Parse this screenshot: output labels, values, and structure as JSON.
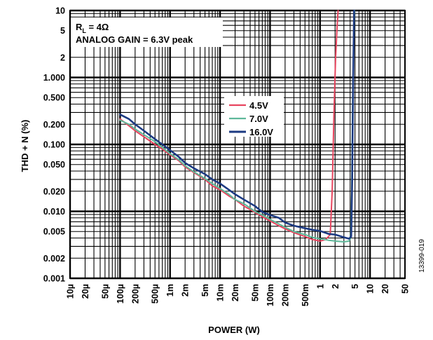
{
  "chart_data": {
    "type": "line",
    "xlabel": "POWER (W)",
    "ylabel": "THD + N (%)",
    "xscale": "log",
    "yscale": "log",
    "xlim": [
      1e-05,
      50
    ],
    "ylim": [
      0.001,
      10
    ],
    "grid": true,
    "legend_placement": "center",
    "figure_id": "13399-019",
    "x_tick_labels": [
      {
        "v": 1e-05,
        "t": "10µ"
      },
      {
        "v": 2e-05,
        "t": "20µ"
      },
      {
        "v": 5e-05,
        "t": "50µ"
      },
      {
        "v": 0.0001,
        "t": "100µ"
      },
      {
        "v": 0.0002,
        "t": "200µ"
      },
      {
        "v": 0.0005,
        "t": "500µ"
      },
      {
        "v": 0.001,
        "t": "1m"
      },
      {
        "v": 0.002,
        "t": "2m"
      },
      {
        "v": 0.005,
        "t": "5m"
      },
      {
        "v": 0.01,
        "t": "10m"
      },
      {
        "v": 0.02,
        "t": "20m"
      },
      {
        "v": 0.05,
        "t": "50m"
      },
      {
        "v": 0.1,
        "t": "100m"
      },
      {
        "v": 0.2,
        "t": "200m"
      },
      {
        "v": 0.5,
        "t": "500m"
      },
      {
        "v": 1,
        "t": "1"
      },
      {
        "v": 2,
        "t": "2"
      },
      {
        "v": 5,
        "t": "5"
      },
      {
        "v": 10,
        "t": "10"
      },
      {
        "v": 20,
        "t": "20"
      },
      {
        "v": 50,
        "t": "50"
      }
    ],
    "y_tick_labels": [
      {
        "v": 10,
        "t": "10"
      },
      {
        "v": 5,
        "t": "5"
      },
      {
        "v": 2,
        "t": "2"
      },
      {
        "v": 1,
        "t": "1.000"
      },
      {
        "v": 0.5,
        "t": "0.500"
      },
      {
        "v": 0.2,
        "t": "0.200"
      },
      {
        "v": 0.1,
        "t": "0.100"
      },
      {
        "v": 0.05,
        "t": "0.050"
      },
      {
        "v": 0.02,
        "t": "0.020"
      },
      {
        "v": 0.01,
        "t": "0.010"
      },
      {
        "v": 0.005,
        "t": "0.005"
      },
      {
        "v": 0.002,
        "t": "0.002"
      },
      {
        "v": 0.001,
        "t": "0.001"
      }
    ],
    "annotation": {
      "line1_main": "R",
      "line1_sub": "L",
      "line1_rest": " = 4Ω",
      "line2": "ANALOG GAIN = 6.3V peak"
    },
    "series": [
      {
        "name": "4.5V",
        "color": "#e8455f",
        "points": [
          [
            0.0001,
            0.24
          ],
          [
            0.00015,
            0.19
          ],
          [
            0.0002,
            0.16
          ],
          [
            0.0003,
            0.13
          ],
          [
            0.0005,
            0.1
          ],
          [
            0.0007,
            0.085
          ],
          [
            0.001,
            0.07
          ],
          [
            0.0015,
            0.057
          ],
          [
            0.002,
            0.046
          ],
          [
            0.003,
            0.038
          ],
          [
            0.005,
            0.03
          ],
          [
            0.007,
            0.024
          ],
          [
            0.01,
            0.021
          ],
          [
            0.015,
            0.017
          ],
          [
            0.02,
            0.015
          ],
          [
            0.03,
            0.012
          ],
          [
            0.05,
            0.0097
          ],
          [
            0.07,
            0.0083
          ],
          [
            0.1,
            0.0072
          ],
          [
            0.15,
            0.0061
          ],
          [
            0.2,
            0.0055
          ],
          [
            0.3,
            0.0048
          ],
          [
            0.5,
            0.0042
          ],
          [
            0.7,
            0.0038
          ],
          [
            1.0,
            0.0036
          ],
          [
            1.3,
            0.0038
          ],
          [
            1.6,
            0.0045
          ],
          [
            1.75,
            0.02
          ],
          [
            1.9,
            0.3
          ],
          [
            2.05,
            2.0
          ],
          [
            2.2,
            6.0
          ],
          [
            2.3,
            10
          ]
        ]
      },
      {
        "name": "7.0V",
        "color": "#5fb89a",
        "points": [
          [
            0.0001,
            0.23
          ],
          [
            0.00015,
            0.2
          ],
          [
            0.0002,
            0.17
          ],
          [
            0.0003,
            0.14
          ],
          [
            0.0005,
            0.11
          ],
          [
            0.0007,
            0.09
          ],
          [
            0.001,
            0.073
          ],
          [
            0.0015,
            0.059
          ],
          [
            0.002,
            0.048
          ],
          [
            0.003,
            0.039
          ],
          [
            0.005,
            0.031
          ],
          [
            0.007,
            0.026
          ],
          [
            0.01,
            0.022
          ],
          [
            0.015,
            0.018
          ],
          [
            0.02,
            0.015
          ],
          [
            0.03,
            0.013
          ],
          [
            0.05,
            0.01
          ],
          [
            0.07,
            0.0088
          ],
          [
            0.1,
            0.0076
          ],
          [
            0.15,
            0.0065
          ],
          [
            0.2,
            0.0058
          ],
          [
            0.3,
            0.005
          ],
          [
            0.5,
            0.0045
          ],
          [
            0.7,
            0.0041
          ],
          [
            1.0,
            0.0039
          ],
          [
            1.5,
            0.0037
          ],
          [
            2.0,
            0.0036
          ],
          [
            3.0,
            0.0035
          ],
          [
            3.8,
            0.0036
          ],
          [
            4.1,
            0.004
          ],
          [
            4.3,
            0.02
          ],
          [
            4.5,
            0.5
          ],
          [
            4.7,
            3.0
          ],
          [
            4.9,
            10
          ]
        ]
      },
      {
        "name": "16.0V",
        "color": "#1c3a82",
        "points": [
          [
            0.0001,
            0.28
          ],
          [
            0.00015,
            0.24
          ],
          [
            0.0002,
            0.2
          ],
          [
            0.0003,
            0.16
          ],
          [
            0.0005,
            0.12
          ],
          [
            0.0007,
            0.1
          ],
          [
            0.001,
            0.082
          ],
          [
            0.0015,
            0.065
          ],
          [
            0.002,
            0.053
          ],
          [
            0.003,
            0.044
          ],
          [
            0.005,
            0.036
          ],
          [
            0.007,
            0.03
          ],
          [
            0.01,
            0.026
          ],
          [
            0.015,
            0.021
          ],
          [
            0.02,
            0.018
          ],
          [
            0.03,
            0.015
          ],
          [
            0.05,
            0.012
          ],
          [
            0.07,
            0.0098
          ],
          [
            0.1,
            0.0088
          ],
          [
            0.15,
            0.008
          ],
          [
            0.2,
            0.0068
          ],
          [
            0.3,
            0.0061
          ],
          [
            0.5,
            0.0056
          ],
          [
            0.7,
            0.0053
          ],
          [
            1.0,
            0.0051
          ],
          [
            1.5,
            0.0046
          ],
          [
            2.0,
            0.0045
          ],
          [
            3.0,
            0.0041
          ],
          [
            3.8,
            0.0039
          ],
          [
            4.2,
            0.0042
          ],
          [
            4.4,
            0.03
          ],
          [
            4.6,
            1.0
          ],
          [
            4.8,
            10
          ]
        ]
      }
    ]
  }
}
